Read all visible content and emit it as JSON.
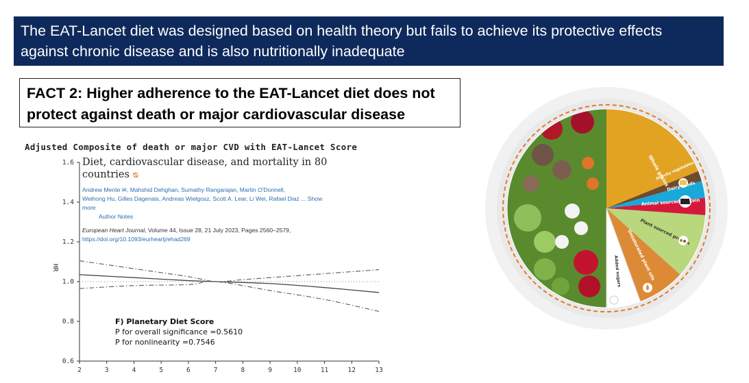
{
  "banner": {
    "line1": "The EAT-Lancet diet was designed based on health theory but fails to achieve its protective effects",
    "line2": "against chronic disease and is also nutritionally inadequate"
  },
  "fact": {
    "line1": "FACT 2: Higher adherence to the EAT-Lancet diet does not",
    "line2": "protect against death or major cardiovascular disease"
  },
  "paper": {
    "title_line1": "Diet, cardiovascular disease, and mortality in 80",
    "title_line2": "countries",
    "open_access_symbol": "ᴓ",
    "authors_line1": "Andrew Mente ✉, Mahshid Dehghan, Sumathy Rangarajan, Martin O'Donnell,",
    "authors_line2": "Weihong Hu, Gilles Dagenais, Andreas Wielgosz, Scott A. Lear, Li Wei, Rafael Diaz ... Show",
    "authors_line3": "more",
    "author_notes": "Author Notes",
    "journal_name": "European Heart Journal",
    "journal_details": ", Volume 44, Issue 28, 21 July 2023, Pages 2560–2579,",
    "doi": "https://doi.org/10.1093/eurheartj/ehad269"
  },
  "chart_stats": {
    "heading": "F) Planetary Diet Score",
    "p_overall": "P for overall significance =0.5610",
    "p_nonlinear": "P for nonlinearity =0.7546"
  },
  "chart_data": {
    "type": "line",
    "title": "Adjusted Composite of death or major CVD with EAT-Lancet Score",
    "xlabel": "",
    "ylabel": "HR",
    "xlim": [
      2,
      13
    ],
    "ylim": [
      0.6,
      1.6
    ],
    "x_ticks": [
      2,
      3,
      4,
      5,
      6,
      7,
      8,
      9,
      10,
      11,
      12,
      13
    ],
    "y_ticks": [
      0.6,
      0.8,
      1.0,
      1.2,
      1.4,
      1.6
    ],
    "y_tick_labels": [
      "0.6",
      "0.8",
      "1.0",
      "1.2",
      "1.4",
      "1.6"
    ],
    "reference_line": 1.0,
    "series": [
      {
        "role": "estimate",
        "x": [
          2,
          4,
          6,
          7,
          9,
          11,
          13
        ],
        "y": [
          1.035,
          1.02,
          1.005,
          1.0,
          0.99,
          0.97,
          0.945
        ]
      },
      {
        "role": "upper",
        "x": [
          2,
          4,
          6,
          7,
          8,
          9,
          11,
          13
        ],
        "y": [
          1.105,
          1.065,
          1.025,
          1.0,
          1.01,
          1.02,
          1.04,
          1.06
        ]
      },
      {
        "role": "lower",
        "x": [
          2,
          4,
          6,
          7,
          9,
          11,
          13
        ],
        "y": [
          0.965,
          0.98,
          0.985,
          1.0,
          0.955,
          0.91,
          0.85
        ]
      }
    ]
  },
  "plate": {
    "labels": [
      "Whole grains",
      "Starchy vegetables",
      "Dairy foods",
      "Animal sourced protein",
      "Plant sourced protein",
      "Unsaturated plant oils",
      "Added sugars"
    ],
    "colors": {
      "vegetables": "#5a8a2e",
      "whole_grains": "#e3a322",
      "starchy_vegetables": "#6e4a2e",
      "dairy": "#19a8d8",
      "animal_protein": "#d41a3c",
      "plant_protein": "#b9d77c",
      "oils": "#dd8a36",
      "sugars": "#ffffff",
      "rim": "#eeeeee"
    }
  }
}
